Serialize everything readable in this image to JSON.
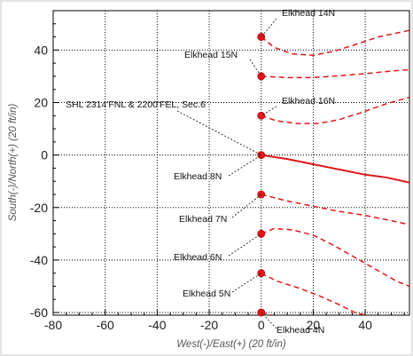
{
  "chart_data": {
    "type": "line",
    "xlabel": "West(-)/East(+) (20 ft/in)",
    "ylabel": "South(-)/North(+) (20 ft/in)",
    "xlim": [
      -80,
      57
    ],
    "ylim": [
      -61,
      55
    ],
    "xticks": [
      "-80",
      "-60",
      "-40",
      "-20",
      "0",
      "20",
      "40"
    ],
    "yticks": [
      "40",
      "20",
      "0",
      "-20",
      "-40",
      "-60"
    ],
    "xtick_values": [
      -80,
      -60,
      -40,
      -20,
      0,
      20,
      40
    ],
    "ytick_values": [
      40,
      20,
      0,
      -20,
      -40,
      -60
    ],
    "grid": true,
    "colors": {
      "well": "#e0161b",
      "leader": "#222222",
      "grid": "#000000"
    },
    "surface_location": {
      "label": "SHL 2314'FNL & 2200'FEL, Sec.6",
      "x": 0,
      "y": 0
    },
    "series": [
      {
        "name": "Elkhead 14N",
        "style": "dashed",
        "points": [
          [
            0,
            45
          ],
          [
            5,
            41
          ],
          [
            12,
            38.5
          ],
          [
            20,
            38
          ],
          [
            28,
            39.5
          ],
          [
            36,
            42
          ],
          [
            45,
            45
          ],
          [
            57,
            47.5
          ]
        ]
      },
      {
        "name": "Elkhead 15N",
        "style": "dashed",
        "points": [
          [
            0,
            30
          ],
          [
            10,
            29.5
          ],
          [
            20,
            29.5
          ],
          [
            30,
            30.2
          ],
          [
            40,
            31
          ],
          [
            50,
            32
          ],
          [
            57,
            32.5
          ]
        ]
      },
      {
        "name": "Elkhead 16N",
        "style": "dashed",
        "points": [
          [
            0,
            15
          ],
          [
            6,
            13
          ],
          [
            14,
            12
          ],
          [
            22,
            12
          ],
          [
            30,
            13.5
          ],
          [
            38,
            16
          ],
          [
            48,
            19.5
          ],
          [
            57,
            22
          ]
        ]
      },
      {
        "name": "Elkhead 8N",
        "style": "solid",
        "points": [
          [
            0,
            0
          ],
          [
            10,
            -1.5
          ],
          [
            20,
            -3.5
          ],
          [
            30,
            -5.5
          ],
          [
            40,
            -7.5
          ],
          [
            48,
            -8.5
          ],
          [
            57,
            -10.5
          ]
        ]
      },
      {
        "name": "Elkhead 7N",
        "style": "dashed",
        "points": [
          [
            0,
            -15
          ],
          [
            10,
            -17.5
          ],
          [
            20,
            -19.5
          ],
          [
            30,
            -21.5
          ],
          [
            40,
            -23
          ],
          [
            50,
            -25
          ],
          [
            57,
            -26.5
          ]
        ]
      },
      {
        "name": "Elkhead 6N",
        "style": "dashed",
        "points": [
          [
            0,
            -30
          ],
          [
            5,
            -28
          ],
          [
            12,
            -28.5
          ],
          [
            20,
            -30.5
          ],
          [
            28,
            -34.5
          ],
          [
            36,
            -39
          ],
          [
            44,
            -43.5
          ],
          [
            52,
            -48
          ],
          [
            57,
            -50
          ]
        ]
      },
      {
        "name": "Elkhead 5N",
        "style": "dashed",
        "points": [
          [
            0,
            -45
          ],
          [
            6,
            -48
          ],
          [
            14,
            -50.5
          ],
          [
            22,
            -53.5
          ],
          [
            30,
            -57
          ],
          [
            36,
            -60
          ],
          [
            40,
            -61
          ]
        ]
      },
      {
        "name": "Elkhead 4N",
        "style": "dashed",
        "points": [
          [
            0,
            -60
          ],
          [
            4,
            -61
          ]
        ]
      }
    ],
    "annotations": [
      {
        "text": "Elkhead 14N",
        "target": [
          0,
          45
        ]
      },
      {
        "text": "Elkhead 15N",
        "target": [
          0,
          30
        ]
      },
      {
        "text": "Elkhead 16N",
        "target": [
          0,
          15
        ]
      },
      {
        "text": "SHL 2314'FNL & 2200'FEL, Sec.6",
        "target": [
          0,
          0
        ]
      },
      {
        "text": "Elkhead 8N",
        "target": [
          0,
          0
        ]
      },
      {
        "text": "Elkhead 7N",
        "target": [
          0,
          -15
        ]
      },
      {
        "text": "Elkhead 6N",
        "target": [
          0,
          -30
        ]
      },
      {
        "text": "Elkhead 5N",
        "target": [
          0,
          -45
        ]
      },
      {
        "text": "Elkhead 4N",
        "target": [
          0,
          -60
        ]
      }
    ]
  }
}
